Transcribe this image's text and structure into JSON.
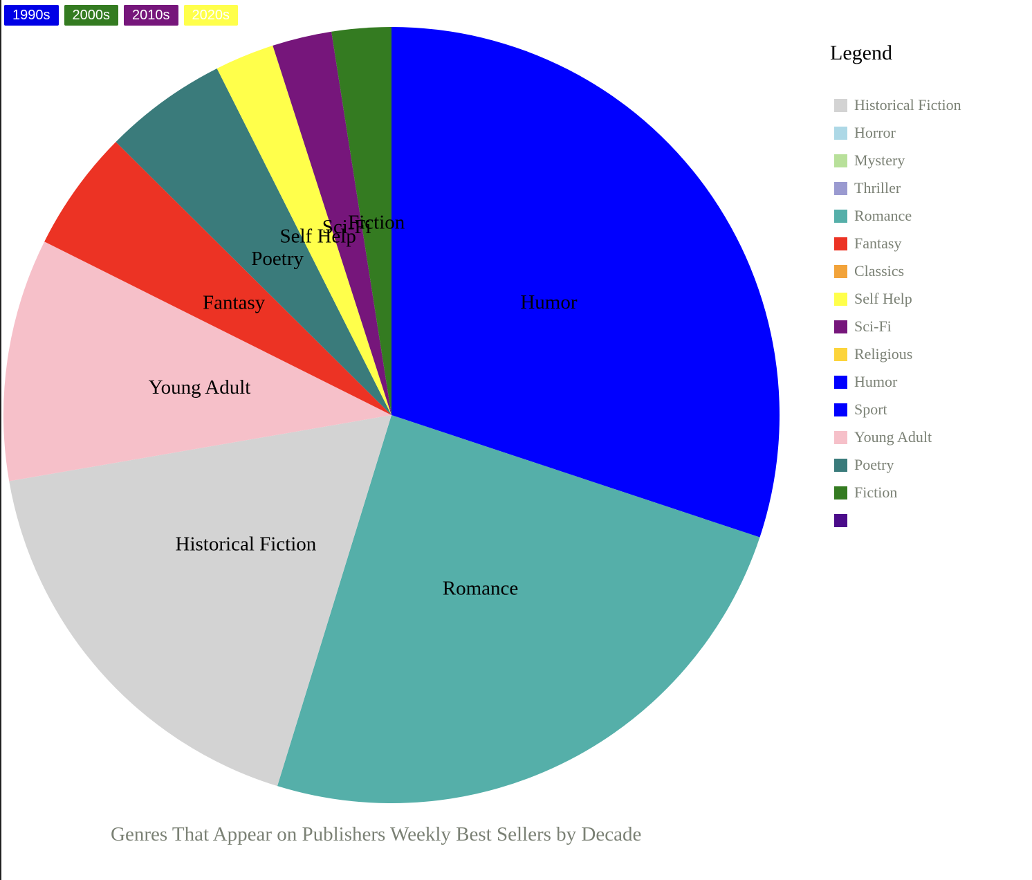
{
  "decades": [
    {
      "label": "1990s",
      "color": "#0000e6"
    },
    {
      "label": "2000s",
      "color": "#347b21"
    },
    {
      "label": "2010s",
      "color": "#76167b"
    },
    {
      "label": "2020s",
      "color": "#ffff4b"
    }
  ],
  "legend": {
    "title": "Legend",
    "items": [
      {
        "label": "Historical Fiction",
        "color": "#d3d3d3"
      },
      {
        "label": "Horror",
        "color": "#add8e6"
      },
      {
        "label": "Mystery",
        "color": "#b8e09a"
      },
      {
        "label": "Thriller",
        "color": "#9a9ad0"
      },
      {
        "label": "Romance",
        "color": "#55afa9"
      },
      {
        "label": "Fantasy",
        "color": "#ec3324"
      },
      {
        "label": "Classics",
        "color": "#f2a33a"
      },
      {
        "label": "Self Help",
        "color": "#ffff4b"
      },
      {
        "label": "Sci-Fi",
        "color": "#76167b"
      },
      {
        "label": "Religious",
        "color": "#fcd43b"
      },
      {
        "label": "Humor",
        "color": "#0000ff"
      },
      {
        "label": "Sport",
        "color": "#0000ff"
      },
      {
        "label": "Young Adult",
        "color": "#f6c0c9"
      },
      {
        "label": "Poetry",
        "color": "#3a7b7b"
      },
      {
        "label": "Fiction",
        "color": "#347b21"
      },
      {
        "label": "",
        "color": "#4b0c8a"
      }
    ]
  },
  "chart_data": {
    "type": "pie",
    "title": "Genres That Appear on Publishers Weekly Best Sellers by Decade",
    "selected_decade": "1990s",
    "slices": [
      {
        "label": "Humor",
        "value": 30.4,
        "color": "#0000ff"
      },
      {
        "label": "Romance",
        "value": 24.9,
        "color": "#55afa9"
      },
      {
        "label": "Historical Fiction",
        "value": 17.7,
        "color": "#d3d3d3"
      },
      {
        "label": "Young Adult",
        "value": 10.2,
        "color": "#f6c0c9"
      },
      {
        "label": "Fantasy",
        "value": 5.1,
        "color": "#ec3324"
      },
      {
        "label": "Poetry",
        "value": 5.2,
        "color": "#3a7b7b"
      },
      {
        "label": "Self Help",
        "value": 2.5,
        "color": "#ffff4b"
      },
      {
        "label": "Sci-Fi",
        "value": 2.5,
        "color": "#76167b"
      },
      {
        "label": "Fiction",
        "value": 2.5,
        "color": "#347b21"
      }
    ]
  }
}
